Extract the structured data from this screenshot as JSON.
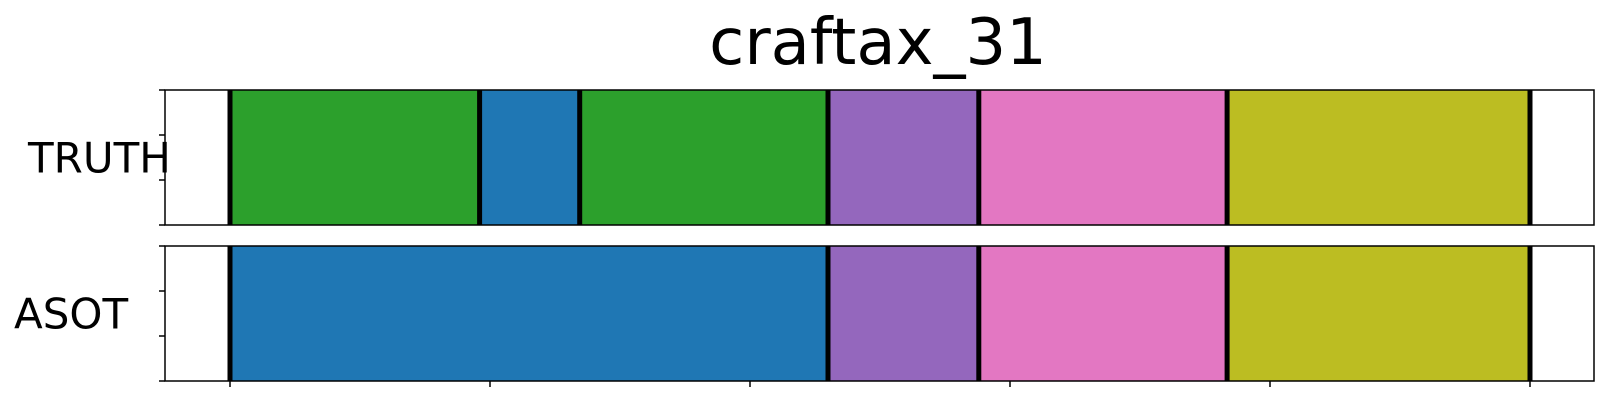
{
  "chart_data": {
    "type": "segmentation-timeline",
    "title": "craftax_31",
    "xlim": [
      0,
      100
    ],
    "x_ticks": [
      5,
      25,
      45,
      65,
      85,
      105
    ],
    "y_ticks_per_row": 4,
    "rows": [
      {
        "label": "TRUTH",
        "segments": [
          {
            "start": 5.0,
            "end": 24.2,
            "color": "#2ca02c"
          },
          {
            "start": 24.2,
            "end": 31.9,
            "color": "#1f77b4"
          },
          {
            "start": 31.9,
            "end": 51.0,
            "color": "#2ca02c"
          },
          {
            "start": 51.0,
            "end": 62.6,
            "color": "#9467bd"
          },
          {
            "start": 62.6,
            "end": 81.7,
            "color": "#e377c2"
          },
          {
            "start": 81.7,
            "end": 105.0,
            "color": "#bcbd22"
          }
        ]
      },
      {
        "label": "ASOT",
        "segments": [
          {
            "start": 5.0,
            "end": 51.0,
            "color": "#1f77b4"
          },
          {
            "start": 51.0,
            "end": 62.6,
            "color": "#9467bd"
          },
          {
            "start": 62.6,
            "end": 81.7,
            "color": "#e377c2"
          },
          {
            "start": 81.7,
            "end": 105.0,
            "color": "#bcbd22"
          }
        ]
      }
    ]
  }
}
